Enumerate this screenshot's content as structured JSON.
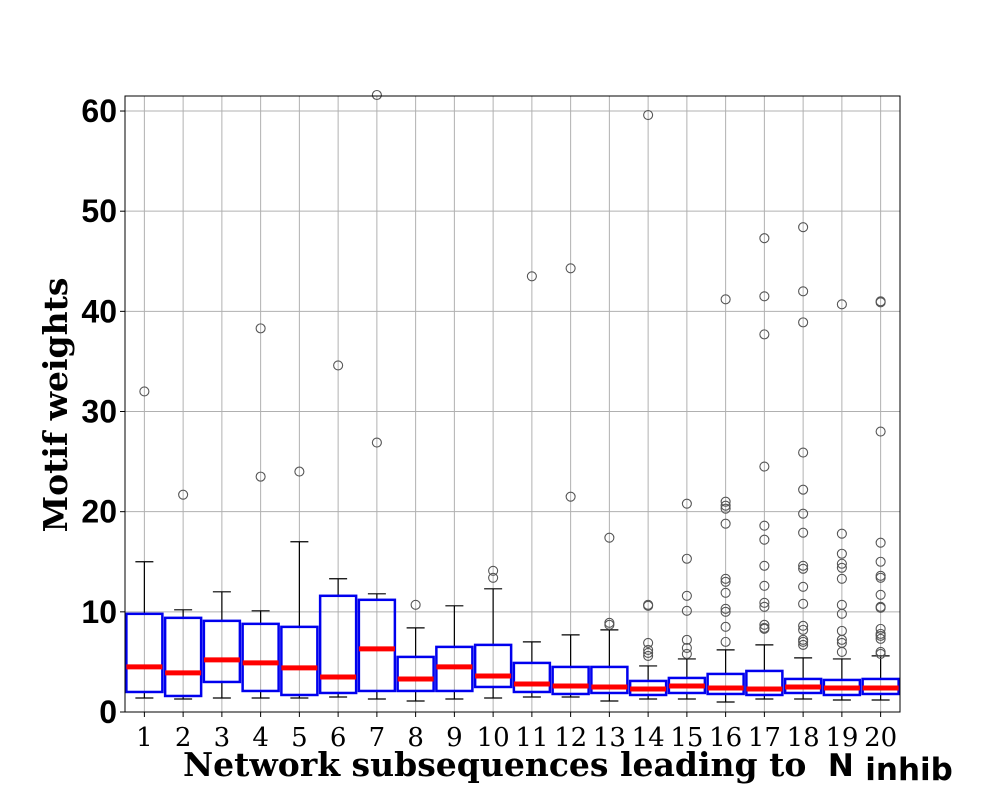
{
  "chart_data": {
    "type": "boxplot",
    "xlabel": "Network subsequences leading to",
    "xlabel_symbol": "N",
    "xlabel_subscript": "inhib",
    "ylabel": "Motif weights",
    "ylim": [
      0,
      61.5
    ],
    "yticks": [
      0,
      10,
      20,
      30,
      40,
      50,
      60
    ],
    "grid": true,
    "colors": {
      "box": "#0000ee",
      "median": "#ff0000",
      "whisker": "#000000",
      "flier": "#555555",
      "grid": "#b0b0b0"
    },
    "categories": [
      "1",
      "2",
      "3",
      "4",
      "5",
      "6",
      "7",
      "8",
      "9",
      "10",
      "11",
      "12",
      "13",
      "14",
      "15",
      "16",
      "17",
      "18",
      "19",
      "20"
    ],
    "boxes": [
      {
        "q1": 2.0,
        "median": 4.5,
        "q3": 9.8,
        "whislo": 1.4,
        "whishi": 15.0,
        "fliers": [
          32.0
        ]
      },
      {
        "q1": 1.6,
        "median": 3.9,
        "q3": 9.4,
        "whislo": 1.3,
        "whishi": 10.2,
        "fliers": [
          21.7
        ]
      },
      {
        "q1": 3.0,
        "median": 5.2,
        "q3": 9.1,
        "whislo": 1.4,
        "whishi": 12.0,
        "fliers": []
      },
      {
        "q1": 2.1,
        "median": 4.9,
        "q3": 8.8,
        "whislo": 1.4,
        "whishi": 10.1,
        "fliers": [
          38.3,
          23.5
        ]
      },
      {
        "q1": 1.7,
        "median": 4.4,
        "q3": 8.5,
        "whislo": 1.4,
        "whishi": 17.0,
        "fliers": [
          24.0
        ]
      },
      {
        "q1": 1.9,
        "median": 3.5,
        "q3": 11.6,
        "whislo": 1.5,
        "whishi": 13.3,
        "fliers": [
          34.6
        ]
      },
      {
        "q1": 2.1,
        "median": 6.3,
        "q3": 11.2,
        "whislo": 1.3,
        "whishi": 11.8,
        "fliers": [
          61.6,
          26.9
        ]
      },
      {
        "q1": 2.1,
        "median": 3.3,
        "q3": 5.5,
        "whislo": 1.1,
        "whishi": 8.4,
        "fliers": [
          10.7
        ]
      },
      {
        "q1": 2.1,
        "median": 4.5,
        "q3": 6.5,
        "whislo": 1.3,
        "whishi": 10.6,
        "fliers": []
      },
      {
        "q1": 2.5,
        "median": 3.6,
        "q3": 6.7,
        "whislo": 1.4,
        "whishi": 12.3,
        "fliers": [
          14.1,
          13.4
        ]
      },
      {
        "q1": 2.0,
        "median": 2.8,
        "q3": 4.9,
        "whislo": 1.5,
        "whishi": 7.0,
        "fliers": [
          43.5
        ]
      },
      {
        "q1": 1.8,
        "median": 2.6,
        "q3": 4.5,
        "whislo": 1.5,
        "whishi": 7.7,
        "fliers": [
          44.3,
          21.5
        ]
      },
      {
        "q1": 1.9,
        "median": 2.5,
        "q3": 4.5,
        "whislo": 1.1,
        "whishi": 8.2,
        "fliers": [
          17.4,
          8.9,
          8.7
        ]
      },
      {
        "q1": 1.7,
        "median": 2.3,
        "q3": 3.1,
        "whislo": 1.3,
        "whishi": 4.6,
        "fliers": [
          59.6,
          10.7,
          10.6,
          6.9,
          6.2,
          5.9,
          5.6
        ]
      },
      {
        "q1": 1.9,
        "median": 2.6,
        "q3": 3.4,
        "whislo": 1.3,
        "whishi": 5.3,
        "fliers": [
          20.8,
          15.3,
          11.6,
          10.1,
          7.2,
          6.4,
          5.8
        ]
      },
      {
        "q1": 1.8,
        "median": 2.4,
        "q3": 3.8,
        "whislo": 1.0,
        "whishi": 6.2,
        "fliers": [
          41.2,
          21.0,
          20.6,
          20.3,
          18.8,
          13.3,
          13.0,
          11.9,
          10.3,
          10.0,
          8.5,
          7.0
        ]
      },
      {
        "q1": 1.7,
        "median": 2.3,
        "q3": 4.1,
        "whislo": 1.3,
        "whishi": 6.7,
        "fliers": [
          47.3,
          41.5,
          37.7,
          24.5,
          18.6,
          17.2,
          14.6,
          12.6,
          10.9,
          10.5,
          8.7,
          8.4,
          8.3
        ]
      },
      {
        "q1": 1.9,
        "median": 2.5,
        "q3": 3.3,
        "whislo": 1.3,
        "whishi": 5.4,
        "fliers": [
          48.4,
          42.0,
          38.9,
          25.9,
          22.2,
          19.8,
          17.9,
          14.6,
          14.3,
          12.5,
          10.8,
          8.6,
          8.2,
          7.2,
          7.0,
          6.7
        ]
      },
      {
        "q1": 1.7,
        "median": 2.4,
        "q3": 3.2,
        "whislo": 1.2,
        "whishi": 5.3,
        "fliers": [
          40.7,
          17.8,
          15.8,
          14.8,
          14.4,
          13.3,
          10.7,
          9.8,
          8.1,
          7.2,
          6.9,
          6.0
        ]
      },
      {
        "q1": 1.8,
        "median": 2.4,
        "q3": 3.3,
        "whislo": 1.2,
        "whishi": 5.6,
        "fliers": [
          41.0,
          40.9,
          28.0,
          16.9,
          15.0,
          13.6,
          13.4,
          11.7,
          10.5,
          10.4,
          8.3,
          7.8,
          7.6,
          7.3,
          6.0,
          5.8
        ]
      }
    ]
  }
}
